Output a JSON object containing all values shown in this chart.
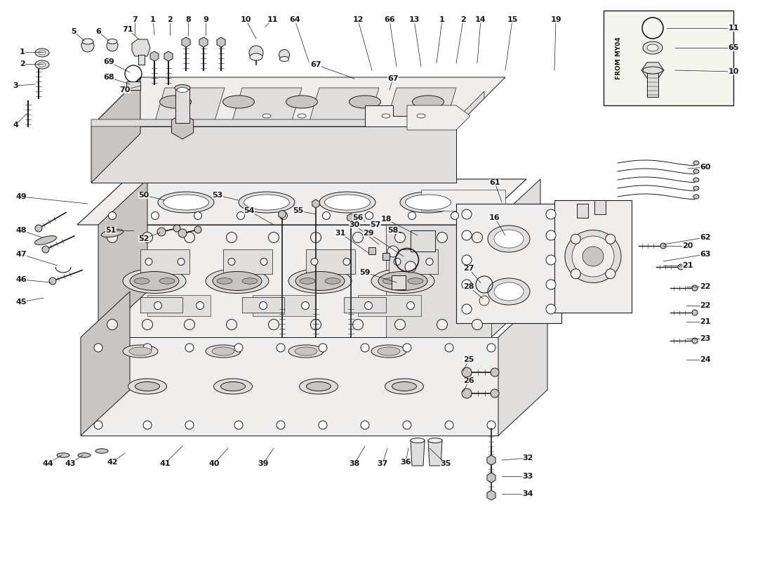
{
  "bg_color": "#ffffff",
  "line_color": "#1a1a1a",
  "fill_light": "#f0eeec",
  "fill_mid": "#e0dedd",
  "fill_dark": "#c8c5c2",
  "fill_shadow": "#b0adaa",
  "watermark_color": "#d4b84a",
  "from_my04_label": "FROM MY04",
  "label_fontsize": 8.0,
  "annotation_fontsize": 7.5
}
